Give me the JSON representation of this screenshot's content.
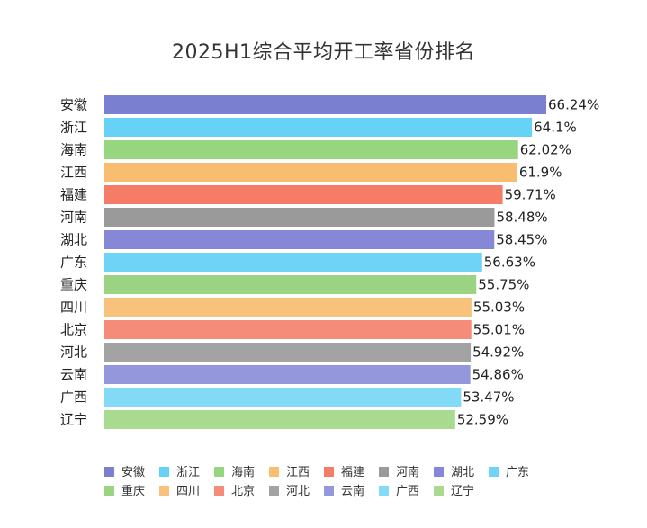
{
  "chart_data": {
    "type": "bar",
    "orientation": "horizontal",
    "title": "2025H1综合平均开工率省份排名",
    "categories": [
      "安徽",
      "浙江",
      "海南",
      "江西",
      "福建",
      "河南",
      "湖北",
      "广东",
      "重庆",
      "四川",
      "北京",
      "河北",
      "云南",
      "广西",
      "辽宁"
    ],
    "values": [
      66.24,
      64.1,
      62.02,
      61.9,
      59.71,
      58.48,
      58.45,
      56.63,
      55.75,
      55.03,
      55.01,
      54.92,
      54.86,
      53.47,
      52.59
    ],
    "value_labels": [
      "66.24%",
      "64.1%",
      "62.02%",
      "61.9%",
      "59.71%",
      "58.48%",
      "58.45%",
      "56.63%",
      "55.75%",
      "55.03%",
      "55.01%",
      "54.92%",
      "54.86%",
      "53.47%",
      "52.59%"
    ],
    "colors": [
      "#7b7fd0",
      "#66d2f5",
      "#95d67f",
      "#f9bd72",
      "#f57c66",
      "#9a9a9a",
      "#8687d6",
      "#6fd3f5",
      "#9ad483",
      "#f9c27c",
      "#f58c7a",
      "#a3a3a3",
      "#9597dc",
      "#83daf6",
      "#a8db90"
    ],
    "xlim": [
      0,
      66.24
    ],
    "legend_position": "bottom",
    "grid": false
  }
}
